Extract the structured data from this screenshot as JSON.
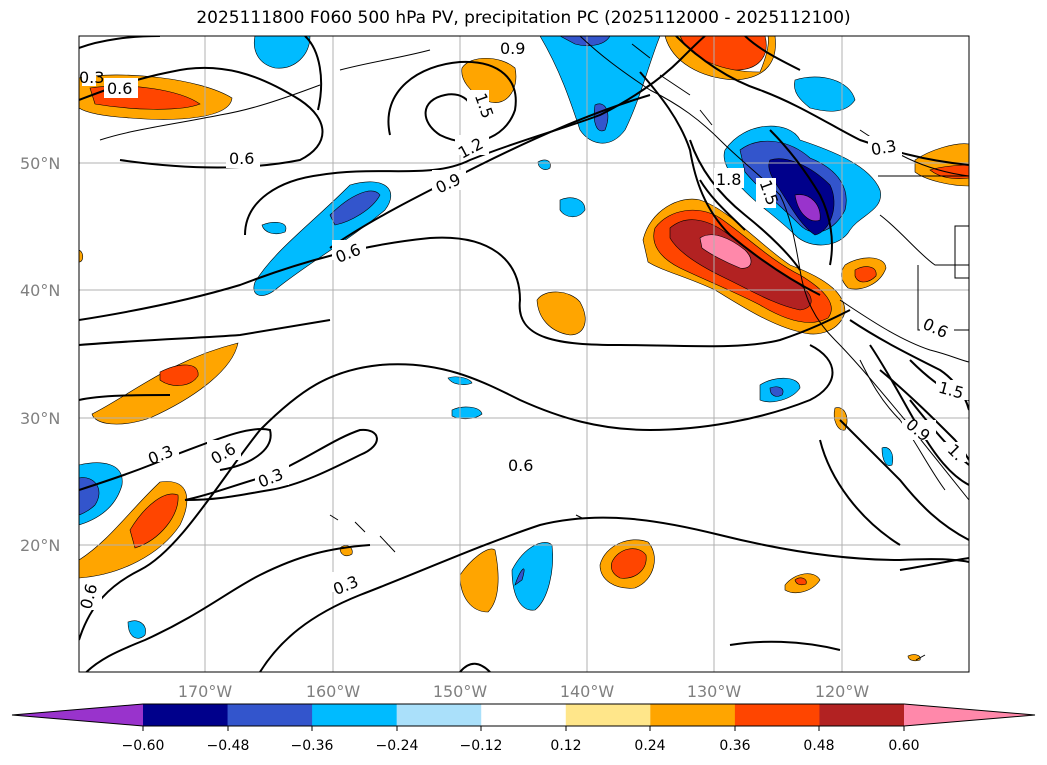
{
  "title": "2025111800 F060 500 hPa PV, precipitation PC (2025112000 - 2025112100)",
  "map": {
    "lat_labels": [
      "50°N",
      "40°N",
      "30°N",
      "20°N"
    ],
    "lon_labels": [
      "170°W",
      "160°W",
      "150°W",
      "140°W",
      "130°W",
      "120°W"
    ],
    "contour_labels": [
      "0.9",
      "0.6",
      "0.6",
      "1.5",
      "1.2",
      "0.9",
      "0.6",
      "0.6",
      "0.3",
      "0.3",
      "0.6",
      "0.3",
      "0.6",
      "0.3",
      "1.8",
      "1.5",
      "0.3",
      "0.6",
      "1.5",
      "0.9",
      "1."
    ],
    "contour_color": "#000000",
    "coastline_color": "#000000",
    "grid_color": "#b0b0b0"
  },
  "colorbar": {
    "ticks": [
      "−0.60",
      "−0.48",
      "−0.36",
      "−0.24",
      "−0.12",
      "0.12",
      "0.24",
      "0.36",
      "0.48",
      "0.60"
    ],
    "colors": [
      "#9933cc",
      "#00008b",
      "#3355cc",
      "#00bbff",
      "#aae0fa",
      "#ffffff",
      "#ffe68a",
      "#ffa500",
      "#ff4500",
      "#b22222",
      "#ff88aa"
    ]
  }
}
